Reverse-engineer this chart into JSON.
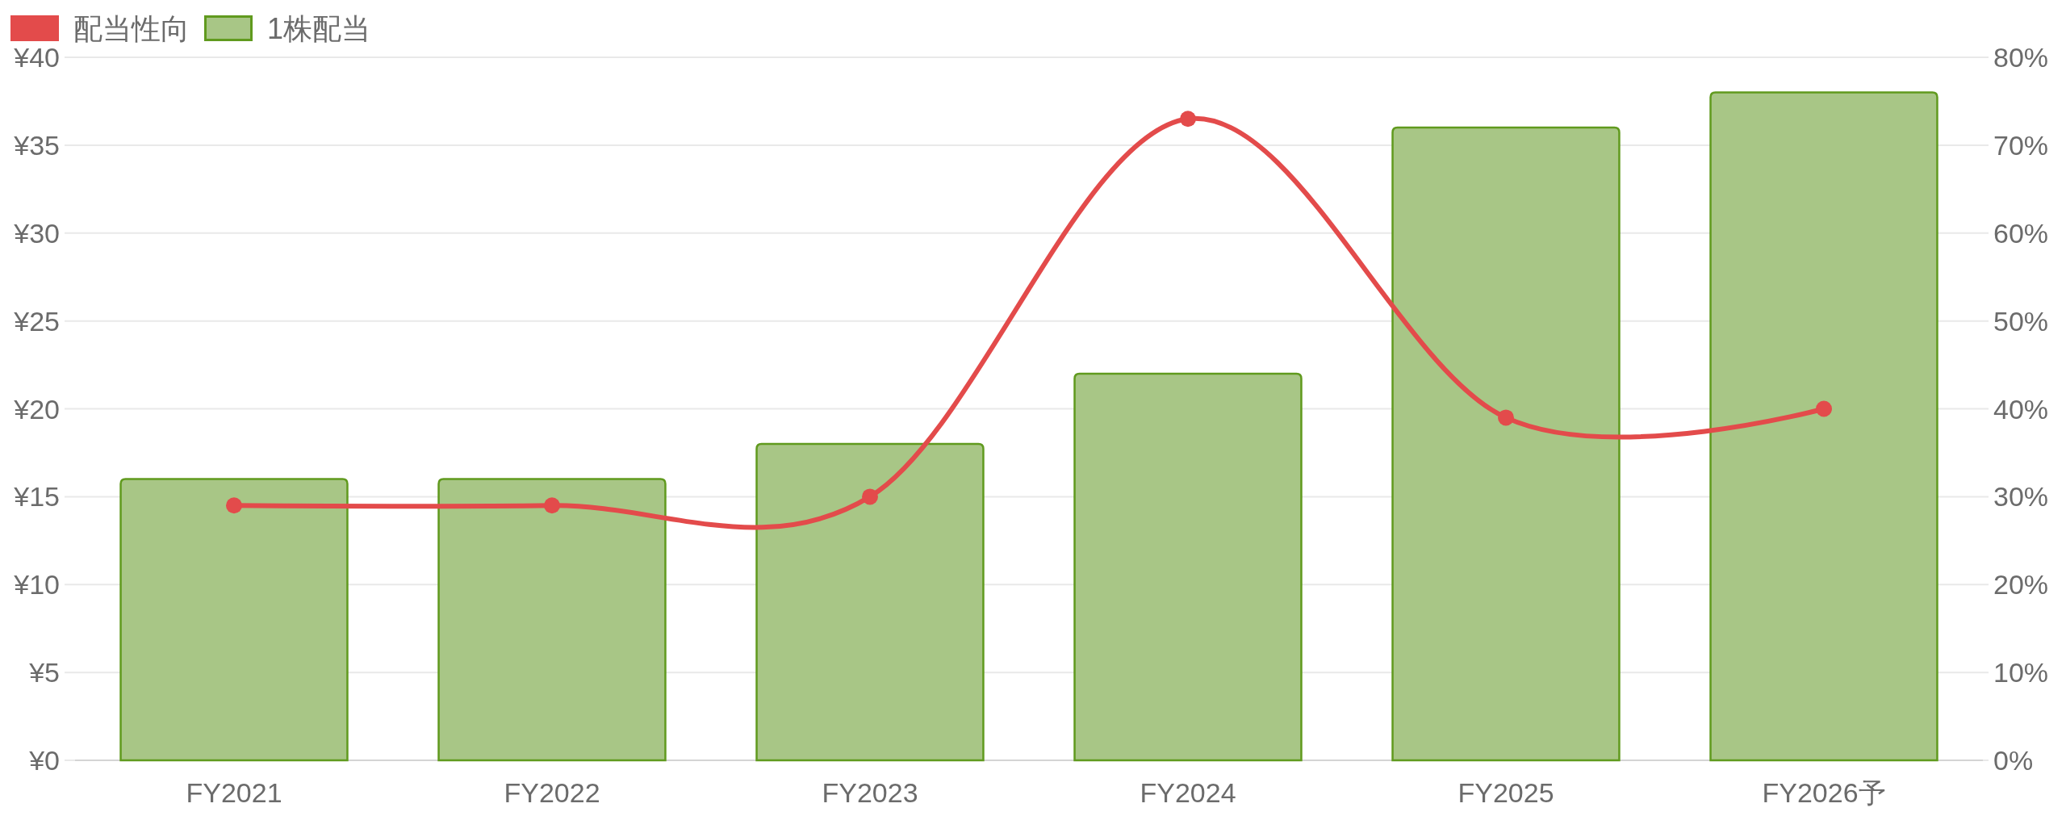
{
  "chart_data": {
    "type": "bar",
    "categories": [
      "FY2021",
      "FY2022",
      "FY2023",
      "FY2024",
      "FY2025",
      "FY2026予"
    ],
    "series": [
      {
        "name": "配当性向",
        "type": "line",
        "axis": "y2",
        "color": "#e34b4b",
        "values": [
          29,
          29,
          30,
          73,
          39,
          40
        ]
      },
      {
        "name": "1株配当",
        "color": "#a8c686",
        "values": [
          16,
          16,
          18,
          22,
          36,
          38
        ]
      }
    ],
    "ylim": [
      0,
      40
    ],
    "yticks": [
      {
        "value": 0,
        "label": "¥0"
      },
      {
        "value": 5,
        "label": "¥5"
      },
      {
        "value": 10,
        "label": "¥10"
      },
      {
        "value": 15,
        "label": "¥15"
      },
      {
        "value": 20,
        "label": "¥20"
      },
      {
        "value": 25,
        "label": "¥25"
      },
      {
        "value": 30,
        "label": "¥30"
      },
      {
        "value": 35,
        "label": "¥35"
      },
      {
        "value": 40,
        "label": "¥40"
      }
    ],
    "y2lim": [
      0,
      80
    ],
    "y2ticks": [
      {
        "value": 0,
        "label": "0%"
      },
      {
        "value": 10,
        "label": "10%"
      },
      {
        "value": 20,
        "label": "20%"
      },
      {
        "value": 30,
        "label": "30%"
      },
      {
        "value": 40,
        "label": "40%"
      },
      {
        "value": 50,
        "label": "50%"
      },
      {
        "value": 60,
        "label": "60%"
      },
      {
        "value": 70,
        "label": "70%"
      },
      {
        "value": 80,
        "label": "80%"
      }
    ],
    "grid": "y",
    "legend": "top left",
    "marker": "circle"
  }
}
